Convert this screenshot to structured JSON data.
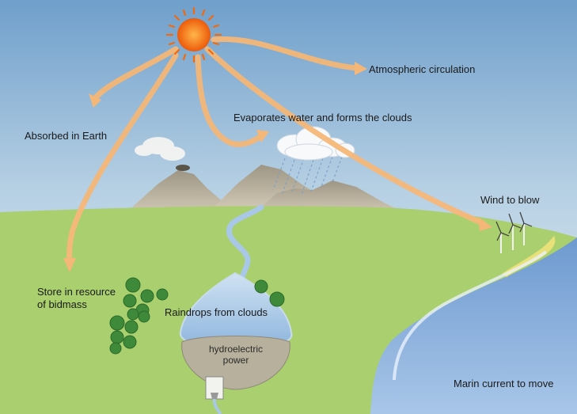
{
  "diagram": {
    "labels": {
      "atmospheric_circulation": "Atmospheric circulation",
      "absorbed_in_earth": "Absorbed in Earth",
      "evaporates_water": "Evaporates water and forms the clouds",
      "wind_to_blow": "Wind to blow",
      "store_biomass_line1": "Store in resource",
      "store_biomass_line2": "of bidmass",
      "raindrops": "Raindrops from clouds",
      "hydro_line1": "hydroelectric",
      "hydro_line2": "power",
      "marin_current": "Marin current to move"
    },
    "colors": {
      "sky_top": "#6f9fcb",
      "sky_bottom": "#eef4f8",
      "land": "#a9cf6f",
      "sea": "#7fa8d6",
      "sun": "#f06a10",
      "arrow": "#f5b778",
      "mountain": "#b3ab98",
      "lake": "#a9c8e8",
      "tree": "#3e8a3a"
    }
  }
}
